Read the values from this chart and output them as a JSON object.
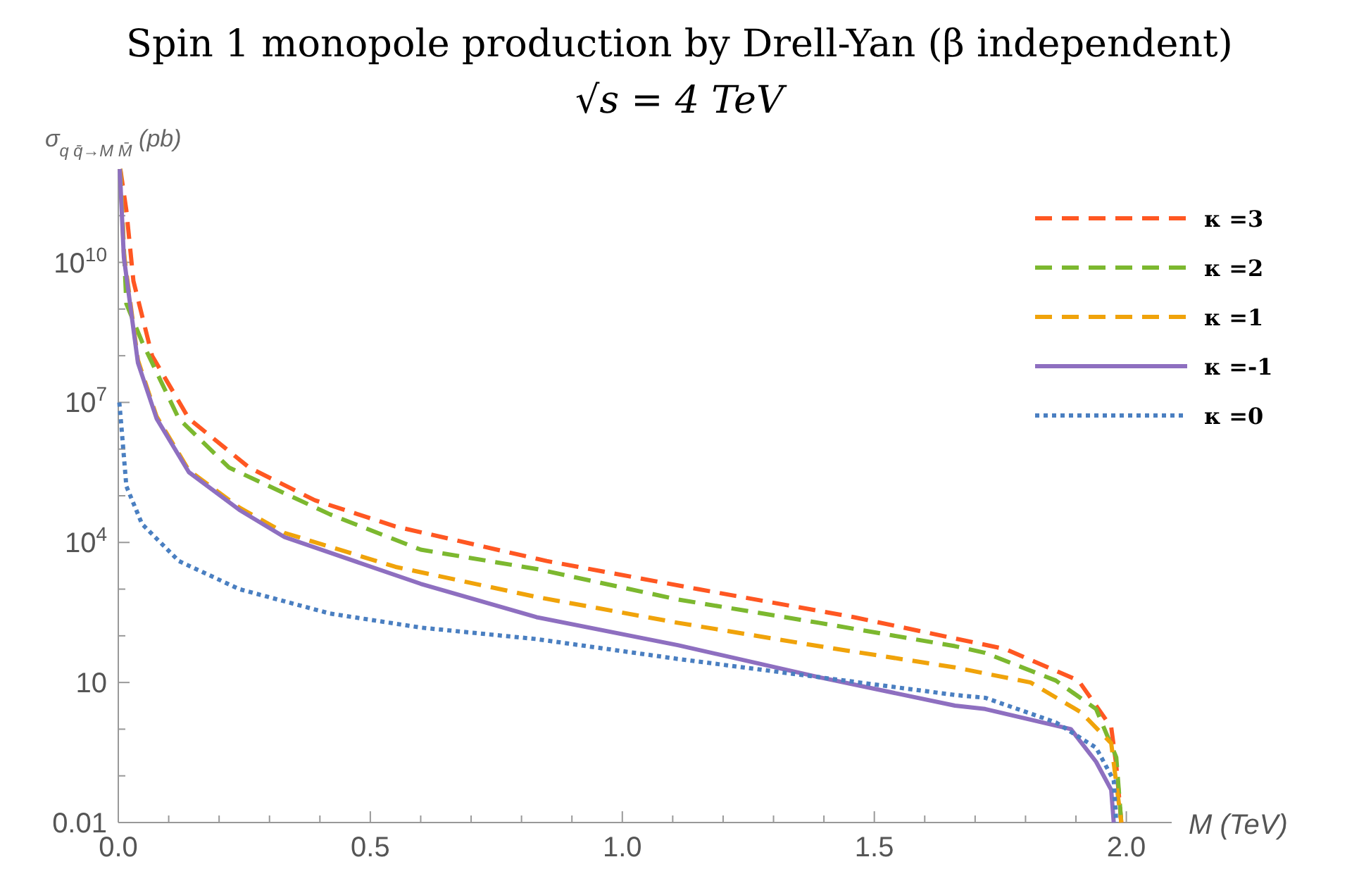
{
  "chart_data": {
    "type": "line",
    "title": "Spin 1 monopole production by Drell-Yan (β independent)",
    "subtitle": "√s = 4 TeV",
    "xlabel": "M (TeV)",
    "ylabel": "σ$_{q q̄→M M̄}$ (pb)",
    "log": "y",
    "legend": "top right",
    "xlim": [
      0,
      2.09
    ],
    "xticks": [
      {
        "value": 0,
        "label": "0.0"
      },
      {
        "value": 0.1,
        "label": null
      },
      {
        "value": 0.2,
        "label": null
      },
      {
        "value": 0.3,
        "label": null
      },
      {
        "value": 0.4,
        "label": null
      },
      {
        "value": 0.5,
        "label": "0.5"
      },
      {
        "value": 0.6,
        "label": null
      },
      {
        "value": 0.7,
        "label": null
      },
      {
        "value": 0.8,
        "label": null
      },
      {
        "value": 0.9,
        "label": null
      },
      {
        "value": 1,
        "label": "1.0"
      },
      {
        "value": 1.1,
        "label": null
      },
      {
        "value": 1.2,
        "label": null
      },
      {
        "value": 1.3,
        "label": null
      },
      {
        "value": 1.4,
        "label": null
      },
      {
        "value": 1.5,
        "label": "1.5"
      },
      {
        "value": 1.6,
        "label": null
      },
      {
        "value": 1.7,
        "label": null
      },
      {
        "value": 1.8,
        "label": null
      },
      {
        "value": 1.9,
        "label": null
      },
      {
        "value": 2,
        "label": "2.0"
      }
    ],
    "ylim": [
      0.01,
      1000000000000.0
    ],
    "yticks": [
      0.01,
      {
        "value": 0.1,
        "label": null
      },
      {
        "value": 1,
        "label": null
      },
      10,
      {
        "value": 100,
        "label": null
      },
      {
        "value": 1000,
        "label": null
      },
      {
        "value": 10000,
        "label": "10$^{4}$"
      },
      {
        "value": 100000,
        "label": null
      },
      {
        "value": 1000000,
        "label": null
      },
      {
        "value": 10000000,
        "label": "10$^{7}$"
      },
      {
        "value": 100000000,
        "label": null
      },
      {
        "value": 1000000000,
        "label": null
      },
      {
        "value": 10000000000,
        "label": "10$^{10}$"
      },
      {
        "value": 100000000000,
        "label": null
      }
    ],
    "series": [
      {
        "name": "κ =3",
        "color": "#ff5722",
        "line_style": "dashed",
        "x": [
          0.004,
          0.016,
          0.03,
          0.067,
          0.14,
          0.26,
          0.39,
          0.55,
          0.85,
          1.15,
          1.46,
          1.76,
          1.905,
          1.97,
          1.98,
          1.99
        ],
        "values": [
          1000000000000.0,
          130000000000.0,
          4000000000.0,
          100000000.0,
          4500000.0,
          400000.0,
          80000.0,
          22000.0,
          4000,
          1000,
          250,
          52,
          11,
          1.1,
          0.17,
          0.01
        ]
      },
      {
        "name": "κ =2",
        "color": "#7cb82f",
        "line_style": "dashed",
        "x": [
          0.004,
          0.016,
          0.047,
          0.12,
          0.22,
          0.42,
          0.6,
          0.83,
          1.11,
          1.39,
          1.66,
          1.72,
          1.86,
          1.94,
          1.98,
          1.99
        ],
        "values": [
          1000000000000.0,
          1300000000.0,
          200000000.0,
          4500000.0,
          400000.0,
          40000.0,
          7000,
          2700,
          600,
          190,
          60,
          43,
          11,
          2.7,
          0.25,
          0.01
        ]
      },
      {
        "name": "κ =1",
        "color": "#f0a30a",
        "line_style": "dashed",
        "x": [
          0.004,
          0.011,
          0.039,
          0.076,
          0.14,
          0.24,
          0.33,
          0.55,
          0.83,
          1.11,
          1.39,
          1.66,
          1.81,
          1.91,
          1.97,
          1.99
        ],
        "values": [
          1000000000000.0,
          16000000000.0,
          80000000.0,
          5000000.0,
          350000.0,
          56000.0,
          16000.0,
          3000,
          680,
          190,
          60,
          21,
          10,
          2.3,
          0.5,
          0.01
        ]
      },
      {
        "name": "κ =-1",
        "color": "#8e6fc0",
        "line_style": "solid",
        "x": [
          0.003,
          0.011,
          0.039,
          0.076,
          0.14,
          0.24,
          0.33,
          0.6,
          0.83,
          1.11,
          1.39,
          1.66,
          1.72,
          1.89,
          1.94,
          1.97,
          1.975
        ],
        "values": [
          1000000000000.0,
          13000000000.0,
          70000000.0,
          4500000.0,
          320000.0,
          50000.0,
          13000.0,
          1300,
          250,
          63,
          13,
          3.2,
          2.7,
          1,
          0.2,
          0.05,
          0.01
        ]
      },
      {
        "name": "κ =0",
        "color": "#4a7fc1",
        "line_style": "dotted",
        "x": [
          0.002,
          0.006,
          0.016,
          0.047,
          0.12,
          0.24,
          0.42,
          0.6,
          0.83,
          1.11,
          1.39,
          1.66,
          1.72,
          1.86,
          1.94,
          1.975,
          1.98
        ],
        "values": [
          10000000.0,
          3200000.0,
          160000.0,
          25000.0,
          4000,
          1000,
          300,
          150,
          85,
          32,
          13,
          5.4,
          4.7,
          1.4,
          0.4,
          0.08,
          0.01
        ]
      }
    ]
  }
}
